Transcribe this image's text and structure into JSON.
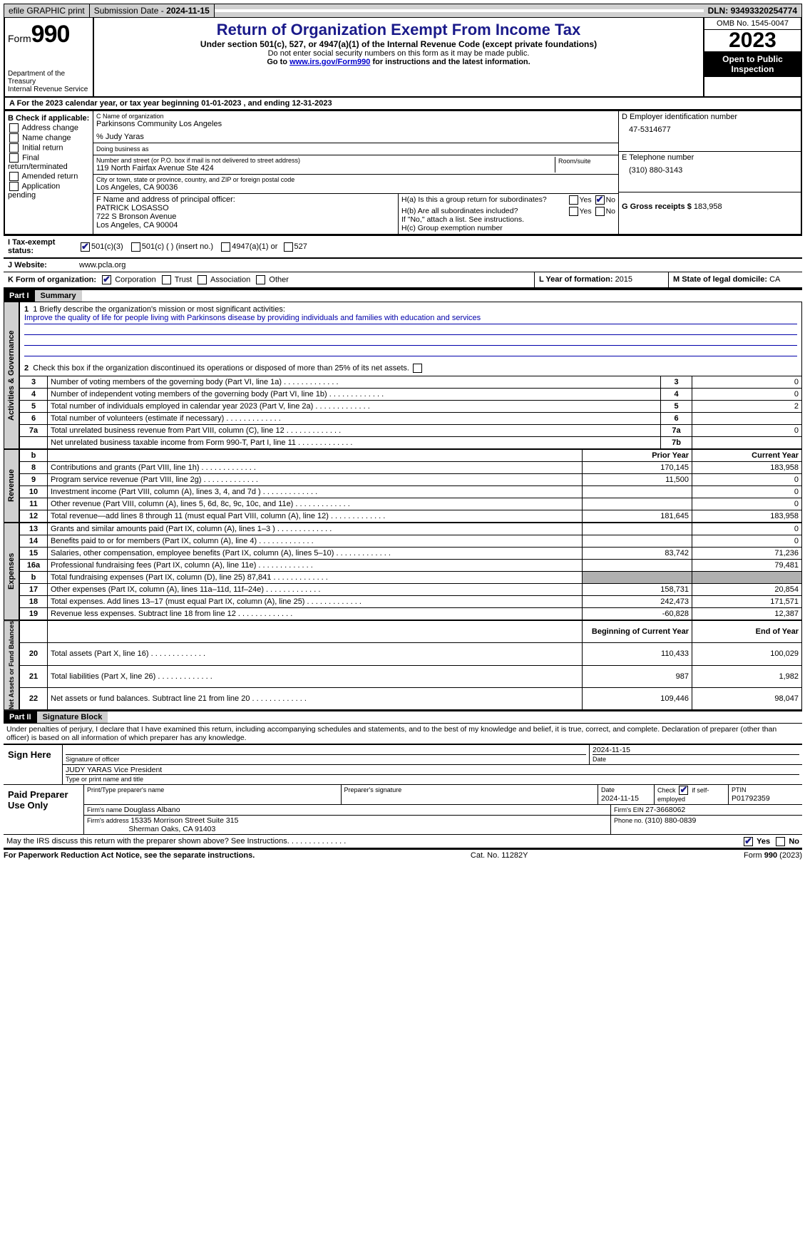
{
  "top": {
    "efile": "efile GRAPHIC print",
    "submission_label": "Submission Date - ",
    "submission_date": "2024-11-15",
    "dln_label": "DLN: ",
    "dln": "93493320254774"
  },
  "header": {
    "form_label": "Form",
    "form_no": "990",
    "dept": "Department of the Treasury\nInternal Revenue Service",
    "title": "Return of Organization Exempt From Income Tax",
    "subtitle": "Under section 501(c), 527, or 4947(a)(1) of the Internal Revenue Code (except private foundations)",
    "note1": "Do not enter social security numbers on this form as it may be made public.",
    "note2_pre": "Go to ",
    "note2_link": "www.irs.gov/Form990",
    "note2_post": " for instructions and the latest information.",
    "omb": "OMB No. 1545-0047",
    "year": "2023",
    "open": "Open to Public Inspection"
  },
  "lineA": {
    "label": "A For the 2023 calendar year, or tax year beginning ",
    "begin": "01-01-2023",
    "mid": " , and ending ",
    "end": "12-31-2023"
  },
  "B": {
    "label": "B Check if applicable:",
    "items": [
      "Address change",
      "Name change",
      "Initial return",
      "Final return/terminated",
      "Amended return",
      "Application pending"
    ]
  },
  "C": {
    "name_label": "C Name of organization",
    "name": "Parkinsons Community Los Angeles",
    "care_of": "% Judy Yaras",
    "dba_label": "Doing business as",
    "addr_label": "Number and street (or P.O. box if mail is not delivered to street address)",
    "addr": "119 North Fairfax Avenue Ste 424",
    "room_label": "Room/suite",
    "city_label": "City or town, state or province, country, and ZIP or foreign postal code",
    "city": "Los Angeles, CA  90036"
  },
  "D": {
    "label": "D Employer identification number",
    "val": "47-5314677"
  },
  "E": {
    "label": "E Telephone number",
    "val": "(310) 880-3143"
  },
  "G": {
    "label": "G Gross receipts $ ",
    "val": "183,958"
  },
  "F": {
    "label": "F  Name and address of principal officer:",
    "name": "PATRICK LOSASSO",
    "addr1": "722 S Bronson Avenue",
    "addr2": "Los Angeles, CA  90004"
  },
  "H": {
    "a": "H(a)  Is this a group return for subordinates?",
    "a_yes": "Yes",
    "a_no": "No",
    "b": "H(b)  Are all subordinates included?",
    "b_note": "If \"No,\" attach a list. See instructions.",
    "c": "H(c)  Group exemption number  "
  },
  "I": {
    "label": "I  Tax-exempt status:",
    "opts": [
      "501(c)(3)",
      "501(c) (  ) (insert no.)",
      "4947(a)(1) or",
      "527"
    ]
  },
  "J": {
    "label": "J  Website: ",
    "val": "www.pcla.org"
  },
  "K": {
    "label": "K Form of organization:",
    "opts": [
      "Corporation",
      "Trust",
      "Association",
      "Other"
    ]
  },
  "L": {
    "label": "L Year of formation: ",
    "val": "2015"
  },
  "M": {
    "label": "M State of legal domicile: ",
    "val": "CA"
  },
  "partI": {
    "label": "Part I",
    "title": "Summary"
  },
  "gov": {
    "label": "Activities & Governance",
    "l1": "1  Briefly describe the organization's mission or most significant activities:",
    "mission": "Improve the quality of life for people living with Parkinsons disease by providing individuals and families with education and services",
    "l2": "Check this box  if the organization discontinued its operations or disposed of more than 25% of its net assets.",
    "rows": [
      {
        "n": "3",
        "d": "Number of voting members of the governing body (Part VI, line 1a)",
        "c": "3",
        "v": "0"
      },
      {
        "n": "4",
        "d": "Number of independent voting members of the governing body (Part VI, line 1b)",
        "c": "4",
        "v": "0"
      },
      {
        "n": "5",
        "d": "Total number of individuals employed in calendar year 2023 (Part V, line 2a)",
        "c": "5",
        "v": "2"
      },
      {
        "n": "6",
        "d": "Total number of volunteers (estimate if necessary)",
        "c": "6",
        "v": ""
      },
      {
        "n": "7a",
        "d": "Total unrelated business revenue from Part VIII, column (C), line 12",
        "c": "7a",
        "v": "0"
      },
      {
        "n": "",
        "d": "Net unrelated business taxable income from Form 990-T, Part I, line 11",
        "c": "7b",
        "v": ""
      }
    ]
  },
  "rev": {
    "label": "Revenue",
    "hdr_b": "b",
    "hdr_prior": "Prior Year",
    "hdr_curr": "Current Year",
    "rows": [
      {
        "n": "8",
        "d": "Contributions and grants (Part VIII, line 1h)",
        "p": "170,145",
        "c": "183,958"
      },
      {
        "n": "9",
        "d": "Program service revenue (Part VIII, line 2g)",
        "p": "11,500",
        "c": "0"
      },
      {
        "n": "10",
        "d": "Investment income (Part VIII, column (A), lines 3, 4, and 7d )",
        "p": "",
        "c": "0"
      },
      {
        "n": "11",
        "d": "Other revenue (Part VIII, column (A), lines 5, 6d, 8c, 9c, 10c, and 11e)",
        "p": "",
        "c": "0"
      },
      {
        "n": "12",
        "d": "Total revenue—add lines 8 through 11 (must equal Part VIII, column (A), line 12)",
        "p": "181,645",
        "c": "183,958"
      }
    ]
  },
  "exp": {
    "label": "Expenses",
    "rows": [
      {
        "n": "13",
        "d": "Grants and similar amounts paid (Part IX, column (A), lines 1–3 )",
        "p": "",
        "c": "0"
      },
      {
        "n": "14",
        "d": "Benefits paid to or for members (Part IX, column (A), line 4)",
        "p": "",
        "c": "0"
      },
      {
        "n": "15",
        "d": "Salaries, other compensation, employee benefits (Part IX, column (A), lines 5–10)",
        "p": "83,742",
        "c": "71,236"
      },
      {
        "n": "16a",
        "d": "Professional fundraising fees (Part IX, column (A), line 11e)",
        "p": "",
        "c": "79,481"
      },
      {
        "n": "b",
        "d": "Total fundraising expenses (Part IX, column (D), line 25) 87,841",
        "p": "SHADE",
        "c": "SHADE"
      },
      {
        "n": "17",
        "d": "Other expenses (Part IX, column (A), lines 11a–11d, 11f–24e)",
        "p": "158,731",
        "c": "20,854"
      },
      {
        "n": "18",
        "d": "Total expenses. Add lines 13–17 (must equal Part IX, column (A), line 25)",
        "p": "242,473",
        "c": "171,571"
      },
      {
        "n": "19",
        "d": "Revenue less expenses. Subtract line 18 from line 12",
        "p": "-60,828",
        "c": "12,387"
      }
    ]
  },
  "net": {
    "label": "Net Assets or Fund Balances",
    "hdr_begin": "Beginning of Current Year",
    "hdr_end": "End of Year",
    "rows": [
      {
        "n": "20",
        "d": "Total assets (Part X, line 16)",
        "p": "110,433",
        "c": "100,029"
      },
      {
        "n": "21",
        "d": "Total liabilities (Part X, line 26)",
        "p": "987",
        "c": "1,982"
      },
      {
        "n": "22",
        "d": "Net assets or fund balances. Subtract line 21 from line 20",
        "p": "109,446",
        "c": "98,047"
      }
    ]
  },
  "partII": {
    "label": "Part II",
    "title": "Signature Block"
  },
  "perjury": "Under penalties of perjury, I declare that I have examined this return, including accompanying schedules and statements, and to the best of my knowledge and belief, it is true, correct, and complete. Declaration of preparer (other than officer) is based on all information of which preparer has any knowledge.",
  "sign": {
    "here": "Sign Here",
    "sig_label": "Signature of officer",
    "date_label": "Date",
    "date": "2024-11-15",
    "name": "JUDY YARAS  Vice President",
    "type_label": "Type or print name and title"
  },
  "prep": {
    "label": "Paid Preparer Use Only",
    "print_label": "Print/Type preparer's name",
    "sig_label": "Preparer's signature",
    "date_label": "Date",
    "date": "2024-11-15",
    "check_label": "Check",
    "self_emp": "if self-employed",
    "ptin_label": "PTIN",
    "ptin": "P01792359",
    "firm_name_label": "Firm's name   ",
    "firm_name": "Douglass Albano",
    "firm_ein_label": "Firm's EIN  ",
    "firm_ein": "27-3668062",
    "firm_addr_label": "Firm's address ",
    "firm_addr1": "15335 Morrison Street Suite 315",
    "firm_addr2": "Sherman Oaks, CA  91403",
    "phone_label": "Phone no. ",
    "phone": "(310) 880-0839"
  },
  "discuss": {
    "q": "May the IRS discuss this return with the preparer shown above? See Instructions.",
    "yes": "Yes",
    "no": "No"
  },
  "footer": {
    "left": "For Paperwork Reduction Act Notice, see the separate instructions.",
    "mid": "Cat. No. 11282Y",
    "right_pre": "Form ",
    "right_form": "990",
    "right_post": " (2023)"
  },
  "colors": {
    "title_blue": "#1a1a8a",
    "link_blue": "#0000cc",
    "shade_gray": "#b0b0b0",
    "header_gray": "#d0d0d0"
  }
}
